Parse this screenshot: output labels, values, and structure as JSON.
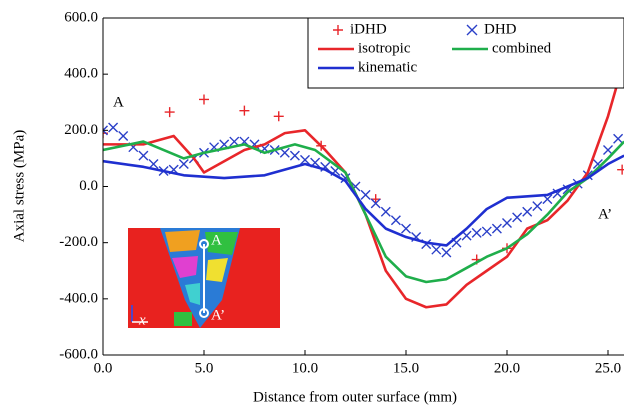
{
  "chart_data": {
    "type": "line",
    "x_label": "Distance from outer surface (mm)",
    "y_label": "Axial stress (MPa)",
    "xlim": [
      0,
      25.8
    ],
    "ylim": [
      -600,
      600
    ],
    "xticks": [
      {
        "value": 0,
        "label": "0.0"
      },
      {
        "value": 5,
        "label": "5.0"
      },
      {
        "value": 10,
        "label": "10.0"
      },
      {
        "value": 15,
        "label": "15.0"
      },
      {
        "value": 20,
        "label": "20.0"
      },
      {
        "value": 25,
        "label": "25.0"
      }
    ],
    "yticks": [
      {
        "value": -600,
        "label": "-600.0"
      },
      {
        "value": -400,
        "label": "-400.0"
      },
      {
        "value": -200,
        "label": "-200.0"
      },
      {
        "value": 0,
        "label": "0.0"
      },
      {
        "value": 200,
        "label": "200.0"
      },
      {
        "value": 400,
        "label": "400.0"
      },
      {
        "value": 600,
        "label": "600.0"
      }
    ],
    "annotations": [
      "A",
      "A’"
    ],
    "inset_labels": [
      "A",
      "A’",
      "x"
    ],
    "legend": "upper right",
    "series": [
      {
        "name": "iDHD",
        "color": "#e8262a",
        "mode": "markers",
        "marker": "+",
        "x": [
          0,
          3.3,
          5,
          7,
          8.7,
          10.8,
          13.5,
          18.5,
          20,
          25.7
        ],
        "values": [
          190,
          265,
          310,
          270,
          250,
          145,
          -45,
          -260,
          -220,
          60
        ]
      },
      {
        "name": "DHD",
        "color": "#2a3fc8",
        "mode": "markers",
        "marker": "x",
        "x": [
          0,
          0.5,
          1,
          1.5,
          2,
          2.5,
          3,
          3.5,
          4,
          4.5,
          5,
          5.5,
          6,
          6.5,
          7,
          7.5,
          8,
          8.5,
          9,
          9.5,
          10,
          10.5,
          11,
          11.5,
          12,
          12.5,
          13,
          13.5,
          14,
          14.5,
          15,
          15.5,
          16,
          16.5,
          17,
          17.5,
          18,
          18.5,
          19,
          19.5,
          20,
          20.5,
          21,
          21.5,
          22,
          22.5,
          23,
          23.5,
          24,
          24.5,
          25,
          25.5
        ],
        "values": [
          200,
          210,
          180,
          140,
          110,
          80,
          55,
          60,
          80,
          100,
          120,
          140,
          150,
          160,
          160,
          150,
          135,
          130,
          120,
          110,
          95,
          85,
          70,
          55,
          30,
          0,
          -30,
          -60,
          -90,
          -120,
          -150,
          -180,
          -205,
          -225,
          -235,
          -200,
          -175,
          -165,
          -160,
          -150,
          -130,
          -110,
          -90,
          -70,
          -45,
          -25,
          -10,
          10,
          40,
          80,
          130,
          170
        ]
      },
      {
        "name": "isotropic",
        "color": "#e8262a",
        "mode": "lines",
        "x": [
          0,
          2,
          3.5,
          4.5,
          5,
          7,
          8,
          9,
          10,
          11,
          12,
          13,
          14,
          15,
          16,
          17,
          18,
          19,
          20,
          21,
          22,
          23,
          24,
          25,
          25.8
        ],
        "values": [
          150,
          150,
          180,
          100,
          50,
          130,
          150,
          190,
          200,
          130,
          50,
          -100,
          -300,
          -400,
          -430,
          -420,
          -350,
          -300,
          -250,
          -150,
          -120,
          -50,
          50,
          250,
          450
        ]
      },
      {
        "name": "combined",
        "color": "#1fae4b",
        "mode": "lines",
        "x": [
          0,
          2,
          4,
          5,
          7,
          8,
          9.5,
          10.5,
          12,
          13,
          14,
          15,
          16,
          17,
          18,
          19,
          20,
          21,
          22,
          23,
          24,
          25,
          25.8
        ],
        "values": [
          130,
          160,
          100,
          120,
          150,
          120,
          150,
          130,
          50,
          -100,
          -250,
          -320,
          -340,
          -330,
          -290,
          -250,
          -220,
          -170,
          -100,
          -20,
          30,
          100,
          160
        ]
      },
      {
        "name": "kinematic",
        "color": "#1f2fd0",
        "mode": "lines",
        "x": [
          0,
          2,
          4,
          6,
          8,
          10,
          11,
          12,
          13,
          14,
          15,
          16,
          17,
          18,
          19,
          20,
          22,
          23,
          24,
          25,
          25.8
        ],
        "values": [
          90,
          70,
          40,
          30,
          40,
          80,
          60,
          20,
          -80,
          -150,
          -180,
          -200,
          -210,
          -150,
          -80,
          -40,
          -30,
          0,
          30,
          80,
          110
        ]
      }
    ]
  }
}
